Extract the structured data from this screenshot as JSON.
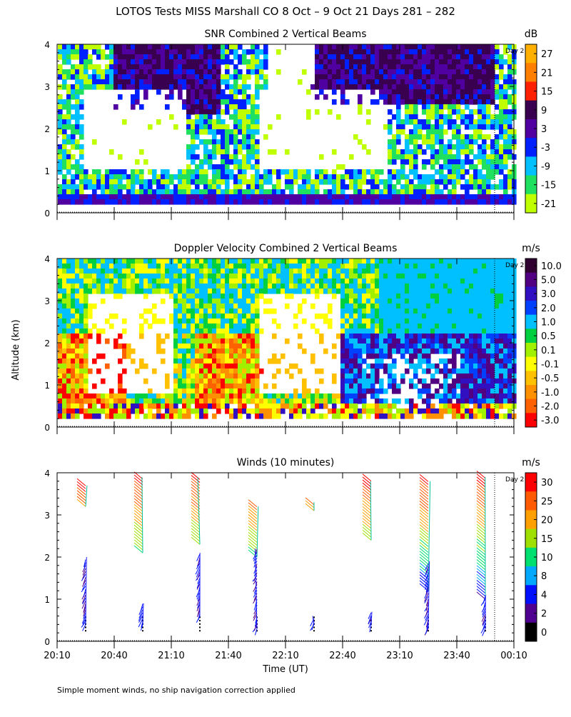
{
  "figure": {
    "title": "LOTOS Tests MISS Marshall CO   8 Oct –  9 Oct 21 Days 281 – 282",
    "ylabel": "Altitude (km)",
    "xlabel": "Time (UT)",
    "footnote": "Simple moment winds, no ship navigation correction applied",
    "day_marker": "Day 2"
  },
  "chart_data": [
    {
      "id": "snr",
      "type": "heatmap",
      "title": "SNR Combined 2 Vertical Beams",
      "units": "dB",
      "x_ticks": [
        "20:10",
        "20:40",
        "21:10",
        "21:40",
        "22:10",
        "22:40",
        "23:10",
        "23:40",
        "00:10"
      ],
      "y_ticks": [
        "0",
        "1",
        "2",
        "3",
        "4"
      ],
      "ylim": [
        0,
        4
      ],
      "colorbar_labels": [
        "27",
        "21",
        "15",
        "9",
        "3",
        "-3",
        "-9",
        "-15",
        "-21"
      ],
      "colors": [
        "#ffb000",
        "#ff7f00",
        "#ff2000",
        "#3a0050",
        "#5000a0",
        "#0020ff",
        "#00c0ff",
        "#20e060",
        "#c0ff00"
      ],
      "low_snr_color": "#ffffff",
      "description_levels": {
        "lower_layer_0.2_0.5km": "dark blue/purple",
        "white_gaps": "below threshold"
      }
    },
    {
      "id": "doppler",
      "type": "heatmap",
      "title": "Doppler Velocity Combined 2 Vertical Beams",
      "units": "m/s",
      "x_ticks": [
        "20:10",
        "20:40",
        "21:10",
        "21:40",
        "22:10",
        "22:40",
        "23:10",
        "23:40",
        "00:10"
      ],
      "y_ticks": [
        "0",
        "1",
        "2",
        "3",
        "4"
      ],
      "ylim": [
        0,
        4
      ],
      "colorbar_labels": [
        "10.0",
        "5.0",
        "3.0",
        "2.0",
        "1.0",
        "0.5",
        "0.1",
        "-0.1",
        "-0.5",
        "-1.0",
        "-2.0",
        "-3.0"
      ],
      "colors": [
        "#300030",
        "#500080",
        "#3010c0",
        "#0040ff",
        "#00c0ff",
        "#00d040",
        "#a0f000",
        "#ffff00",
        "#ffc000",
        "#ff9000",
        "#ff6000",
        "#ff0000"
      ]
    },
    {
      "id": "winds",
      "type": "scatter",
      "title": "Winds (10 minutes)",
      "units": "m/s",
      "x_ticks": [
        "20:10",
        "20:40",
        "21:10",
        "21:40",
        "22:10",
        "22:40",
        "23:10",
        "23:40",
        "00:10"
      ],
      "y_ticks": [
        "0",
        "1",
        "2",
        "3",
        "4"
      ],
      "ylim": [
        0,
        4
      ],
      "colorbar_labels": [
        "30",
        "25",
        "20",
        "15",
        "10",
        "8",
        "4",
        "2",
        "0"
      ],
      "colors": [
        "#ff0000",
        "#ff5a00",
        "#ffa000",
        "#a0e000",
        "#00e070",
        "#00a8ff",
        "#0010ff",
        "#500090",
        "#000000"
      ],
      "profile_times": [
        "20:25",
        "20:55",
        "21:25",
        "21:55",
        "22:25",
        "22:55",
        "23:25",
        "23:55"
      ]
    }
  ]
}
